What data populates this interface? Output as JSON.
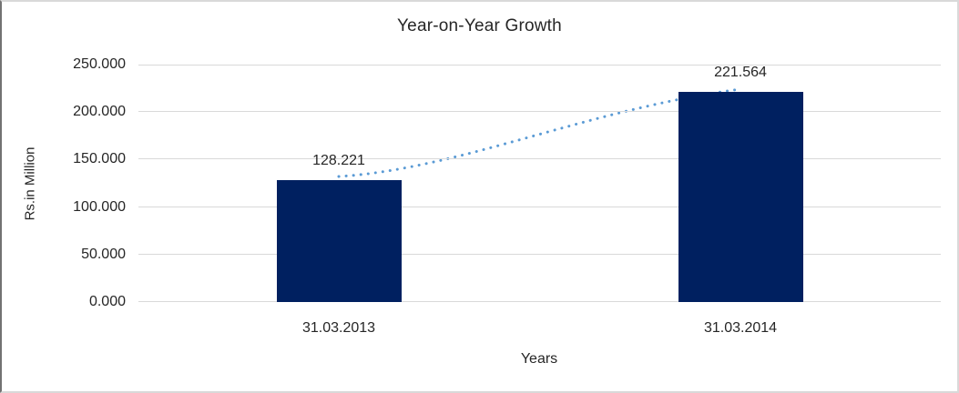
{
  "chart_data": {
    "type": "bar",
    "title": "Year-on-Year Growth",
    "categories": [
      "31.03.2013",
      "31.03.2014"
    ],
    "values": [
      128.221,
      221.564
    ],
    "value_labels": [
      "128.221",
      "221.564"
    ],
    "xlabel": "Years",
    "ylabel": "Rs.in Million",
    "ylim": [
      0,
      250
    ],
    "ytick_step": 50,
    "ytick_labels": [
      "0.000",
      "50.000",
      "100.000",
      "150.000",
      "200.000",
      "250.000"
    ],
    "grid": true,
    "legend": false,
    "trendline": {
      "style": "dotted",
      "color": "#5B9BD5"
    },
    "colors": {
      "bar": "#002060",
      "gridline": "#D9D9D9",
      "text": "#262626",
      "background": "#FFFFFF",
      "frame_border": "#D9D9D9",
      "frame_border_left": "#737373"
    }
  }
}
